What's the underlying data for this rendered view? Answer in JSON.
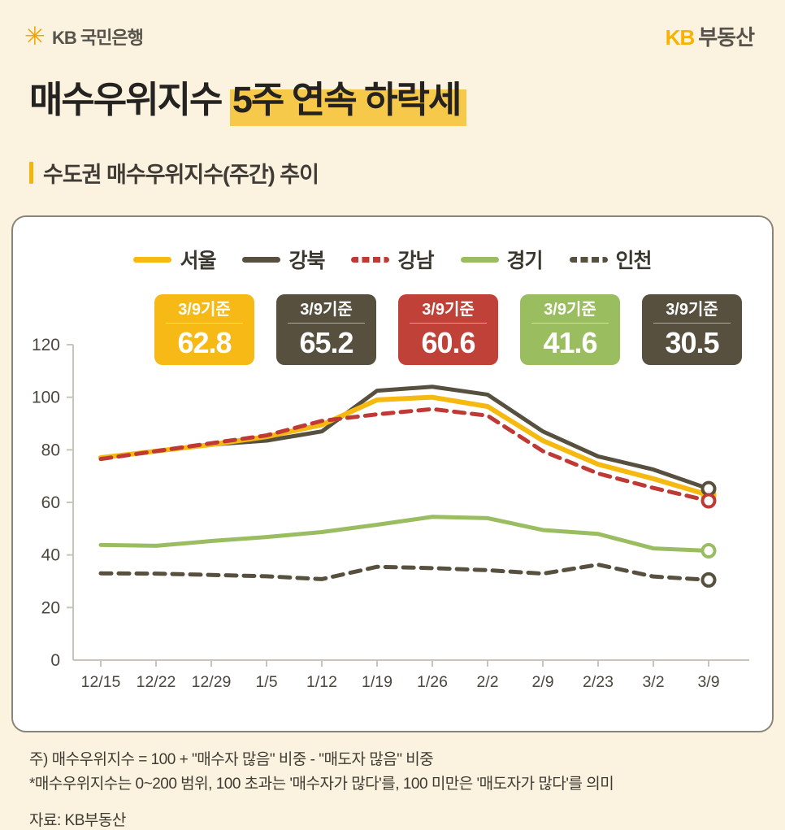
{
  "header": {
    "bank_name": "KB 국민은행",
    "brand_kb": "KB",
    "brand_rest": "부동산"
  },
  "title": {
    "plain": "매수우위지수 ",
    "highlight": "5주 연속 하락세"
  },
  "subtitle": "수도권 매수우위지수(주간) 추이",
  "colors": {
    "background": "#FBF3DF",
    "card_border": "#8A857B",
    "title_highlight": "#F6C94B",
    "accent_yellow": "#F5B90F",
    "dark_brown": "#57503F",
    "red": "#C03A35",
    "green": "#9ABD62",
    "axis": "#C9C4BA",
    "axis_text": "#4A473F"
  },
  "chart_data": {
    "type": "line",
    "title": "수도권 매수우위지수(주간) 추이",
    "x": [
      "12/15",
      "12/22",
      "12/29",
      "1/5",
      "1/12",
      "1/19",
      "1/26",
      "2/2",
      "2/9",
      "2/23",
      "3/2",
      "3/9"
    ],
    "ylim": [
      0,
      120
    ],
    "yticks": [
      0,
      20,
      40,
      60,
      80,
      100,
      120
    ],
    "grid": false,
    "legend_position": "top",
    "end_marker": "open-circle",
    "series": [
      {
        "name": "서울",
        "color": "#F5B90F",
        "dash": false,
        "width": 6,
        "values": [
          77,
          79.5,
          82,
          85,
          89.5,
          99,
          100,
          96.5,
          83.5,
          74.5,
          69,
          62.8
        ],
        "badge": {
          "label": "3/9기준",
          "value": "62.8",
          "color": "#F7B916"
        }
      },
      {
        "name": "강북",
        "color": "#57503F",
        "dash": false,
        "width": 5,
        "values": [
          77,
          79.5,
          82,
          83.5,
          87,
          102.5,
          104,
          101,
          87,
          77.5,
          72.5,
          65.2
        ],
        "badge": {
          "label": "3/9기준",
          "value": "65.2",
          "color": "#57503F"
        }
      },
      {
        "name": "강남",
        "color": "#C03A35",
        "dash": true,
        "width": 5,
        "values": [
          76.5,
          79.5,
          82.5,
          85.5,
          91,
          93.5,
          95.5,
          93,
          79.5,
          71,
          65.5,
          60.6
        ],
        "badge": {
          "label": "3/9기준",
          "value": "60.6",
          "color": "#C04138"
        }
      },
      {
        "name": "경기",
        "color": "#9ABD62",
        "dash": false,
        "width": 5,
        "values": [
          43.8,
          43.5,
          45.3,
          46.8,
          48.7,
          51.5,
          54.5,
          54,
          49.5,
          48,
          42.5,
          41.6
        ],
        "badge": {
          "label": "3/9기준",
          "value": "41.6",
          "color": "#9ABD60"
        }
      },
      {
        "name": "인천",
        "color": "#57503F",
        "dash": true,
        "width": 5,
        "values": [
          33,
          32.9,
          32.4,
          31.9,
          30.8,
          35.5,
          35,
          34.2,
          32.9,
          36.3,
          31.8,
          30.5
        ],
        "badge": {
          "label": "3/9기준",
          "value": "30.5",
          "color": "#57503F"
        }
      }
    ]
  },
  "footnotes": [
    "주) 매수우위지수 = 100 + \"매수자 많음\" 비중 - \"매도자 많음\" 비중",
    "*매수우위지수는 0~200 범위, 100 초과는 '매수자가 많다'를, 100 미만은 '매도자가 많다'를 의미"
  ],
  "source": "자료: KB부동산"
}
